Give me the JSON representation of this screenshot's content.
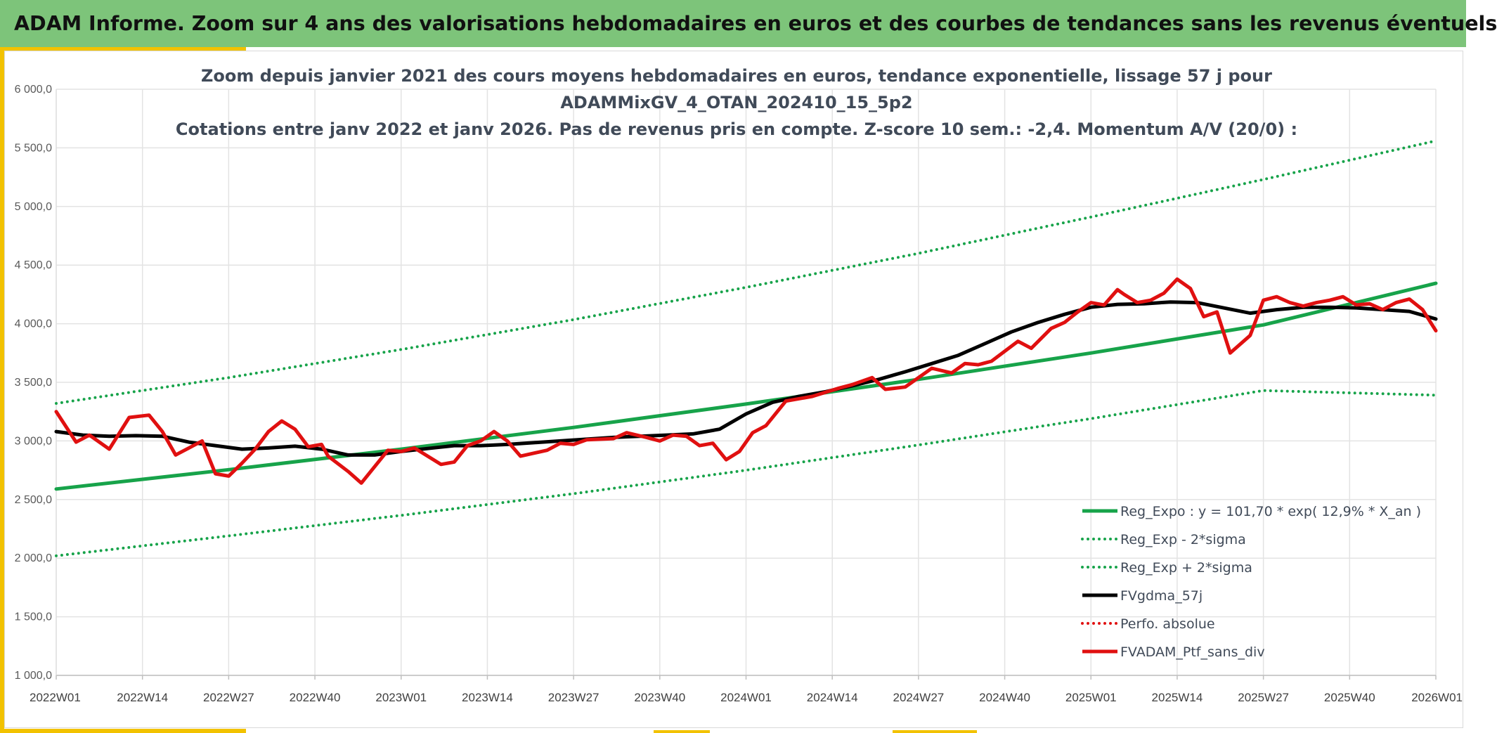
{
  "header": {
    "title": "ADAM Informe. Zoom sur 4 ans des valorisations hebdomadaires en euros et des courbes de tendances sans les revenus éventuels"
  },
  "colors": {
    "banner": "#7dc47a",
    "accent": "#f2c200",
    "trend": "#17a34a",
    "smooth": "#000000",
    "series": "#e01010",
    "grid": "#e3e3e3"
  },
  "chart_data": {
    "type": "line",
    "title_lines": [
      "Zoom depuis janvier 2021 des cours moyens hebdomadaires en euros, tendance exponentielle, lissage 57 j pour",
      "ADAMMixGV_4_OTAN_202410_15_5p2",
      "Cotations entre janv 2022 et janv 2026. Pas de revenus pris en compte. Z-score 10 sem.: -2,4. Momentum A/V (20/0) :"
    ],
    "ylim": [
      1000,
      6000
    ],
    "yticks": [
      1000,
      1500,
      2000,
      2500,
      3000,
      3500,
      4000,
      4500,
      5000,
      5500,
      6000
    ],
    "ytick_labels": [
      "1 000,0",
      "1 500,0",
      "2 000,0",
      "2 500,0",
      "3 000,0",
      "3 500,0",
      "4 000,0",
      "4 500,0",
      "5 000,0",
      "5 500,0",
      "6 000,0"
    ],
    "xlim_weeks": [
      0,
      208
    ],
    "xticks_weeks": [
      0,
      13,
      26,
      39,
      52,
      65,
      78,
      91,
      104,
      117,
      130,
      143,
      156,
      169,
      182,
      195,
      208
    ],
    "xtick_labels": [
      "2022W01",
      "2022W14",
      "2022W27",
      "2022W40",
      "2023W01",
      "2023W14",
      "2023W27",
      "2023W40",
      "2024W01",
      "2024W14",
      "2024W27",
      "2024W40",
      "2025W01",
      "2025W14",
      "2025W27",
      "2025W40",
      "2026W01"
    ],
    "series": [
      {
        "name": "Reg_Expo : y = 101,70 * exp( 12,9% *  X_an )",
        "style": "solid",
        "color": "#17a34a",
        "width": 5,
        "x": [
          0,
          26,
          52,
          78,
          104,
          130,
          156,
          182,
          208
        ],
        "values": [
          2590,
          2755,
          2930,
          3115,
          3315,
          3525,
          3750,
          3990,
          4345
        ]
      },
      {
        "name": "Reg_Exp - 2*sigma",
        "style": "dotted",
        "color": "#17a34a",
        "width": 4,
        "x": [
          0,
          26,
          52,
          78,
          104,
          130,
          156,
          182,
          208
        ],
        "values": [
          2020,
          2190,
          2365,
          2550,
          2750,
          2965,
          3190,
          3430,
          3390
        ]
      },
      {
        "name": "Reg_Exp + 2*sigma",
        "style": "dotted",
        "color": "#17a34a",
        "width": 4,
        "x": [
          0,
          26,
          52,
          78,
          104,
          130,
          156,
          182,
          208
        ],
        "values": [
          3320,
          3540,
          3780,
          4035,
          4310,
          4600,
          4910,
          5230,
          5560
        ]
      },
      {
        "name": "FVgdma_57j",
        "style": "solid",
        "color": "#000000",
        "width": 5,
        "x": [
          0,
          4,
          8,
          12,
          16,
          20,
          24,
          28,
          32,
          36,
          40,
          44,
          48,
          52,
          56,
          60,
          64,
          68,
          72,
          76,
          80,
          84,
          88,
          92,
          96,
          100,
          104,
          108,
          112,
          116,
          120,
          124,
          128,
          132,
          136,
          140,
          144,
          148,
          152,
          156,
          160,
          164,
          168,
          172,
          176,
          180,
          184,
          188,
          192,
          196,
          200,
          204,
          208
        ],
        "values": [
          3080,
          3050,
          3040,
          3045,
          3040,
          2990,
          2960,
          2930,
          2940,
          2955,
          2930,
          2880,
          2880,
          2910,
          2935,
          2960,
          2960,
          2970,
          2985,
          3000,
          3015,
          3030,
          3040,
          3050,
          3060,
          3100,
          3230,
          3330,
          3380,
          3420,
          3470,
          3525,
          3590,
          3660,
          3730,
          3830,
          3930,
          4010,
          4080,
          4140,
          4165,
          4170,
          4185,
          4180,
          4135,
          4090,
          4120,
          4140,
          4140,
          4135,
          4120,
          4105,
          4040
        ]
      },
      {
        "name": "Perfo. absolue",
        "style": "dotted",
        "color": "#e01010",
        "width": 4,
        "x": [],
        "values": []
      },
      {
        "name": "FVADAM_Ptf_sans_div",
        "style": "solid",
        "color": "#e01010",
        "width": 5,
        "x": [
          0,
          3,
          5,
          8,
          11,
          14,
          16,
          18,
          20,
          22,
          24,
          26,
          28,
          30,
          32,
          34,
          36,
          38,
          40,
          41,
          44,
          46,
          50,
          52,
          54,
          58,
          60,
          62,
          64,
          66,
          68,
          70,
          74,
          76,
          78,
          80,
          84,
          86,
          89,
          91,
          93,
          95,
          97,
          99,
          101,
          103,
          105,
          107,
          110,
          114,
          118,
          120,
          123,
          125,
          128,
          132,
          135,
          137,
          139,
          141,
          145,
          147,
          150,
          152,
          154,
          156,
          158,
          160,
          161,
          163,
          165,
          167,
          169,
          171,
          173,
          175,
          177,
          180,
          182,
          184,
          186,
          188,
          190,
          192,
          194,
          196,
          198,
          200,
          202,
          204,
          206,
          208
        ],
        "values": [
          3250,
          2990,
          3050,
          2930,
          3200,
          3220,
          3080,
          2880,
          2940,
          3000,
          2720,
          2700,
          2810,
          2930,
          3080,
          3170,
          3100,
          2950,
          2970,
          2870,
          2740,
          2640,
          2920,
          2910,
          2940,
          2800,
          2820,
          2960,
          3000,
          3080,
          3000,
          2870,
          2920,
          2980,
          2970,
          3010,
          3020,
          3070,
          3030,
          3000,
          3050,
          3040,
          2960,
          2980,
          2840,
          2910,
          3070,
          3130,
          3340,
          3380,
          3450,
          3480,
          3540,
          3440,
          3460,
          3620,
          3580,
          3660,
          3650,
          3680,
          3850,
          3790,
          3960,
          4010,
          4100,
          4180,
          4160,
          4290,
          4250,
          4180,
          4200,
          4260,
          4380,
          4300,
          4060,
          4100,
          3750,
          3900,
          4200,
          4230,
          4180,
          4150,
          4180,
          4200,
          4230,
          4160,
          4170,
          4120,
          4180,
          4210,
          4120,
          3940
        ]
      }
    ],
    "legend": {
      "position": "bottom-right",
      "entries": [
        {
          "label": "Reg_Expo : y = 101,70 * exp( 12,9% *  X_an )",
          "style": "solid",
          "color": "#17a34a"
        },
        {
          "label": "Reg_Exp - 2*sigma",
          "style": "dotted",
          "color": "#17a34a"
        },
        {
          "label": "Reg_Exp + 2*sigma",
          "style": "dotted",
          "color": "#17a34a"
        },
        {
          "label": "FVgdma_57j",
          "style": "solid",
          "color": "#000000"
        },
        {
          "label": "Perfo. absolue",
          "style": "dotted",
          "color": "#e01010"
        },
        {
          "label": "FVADAM_Ptf_sans_div",
          "style": "solid",
          "color": "#e01010"
        }
      ]
    }
  }
}
